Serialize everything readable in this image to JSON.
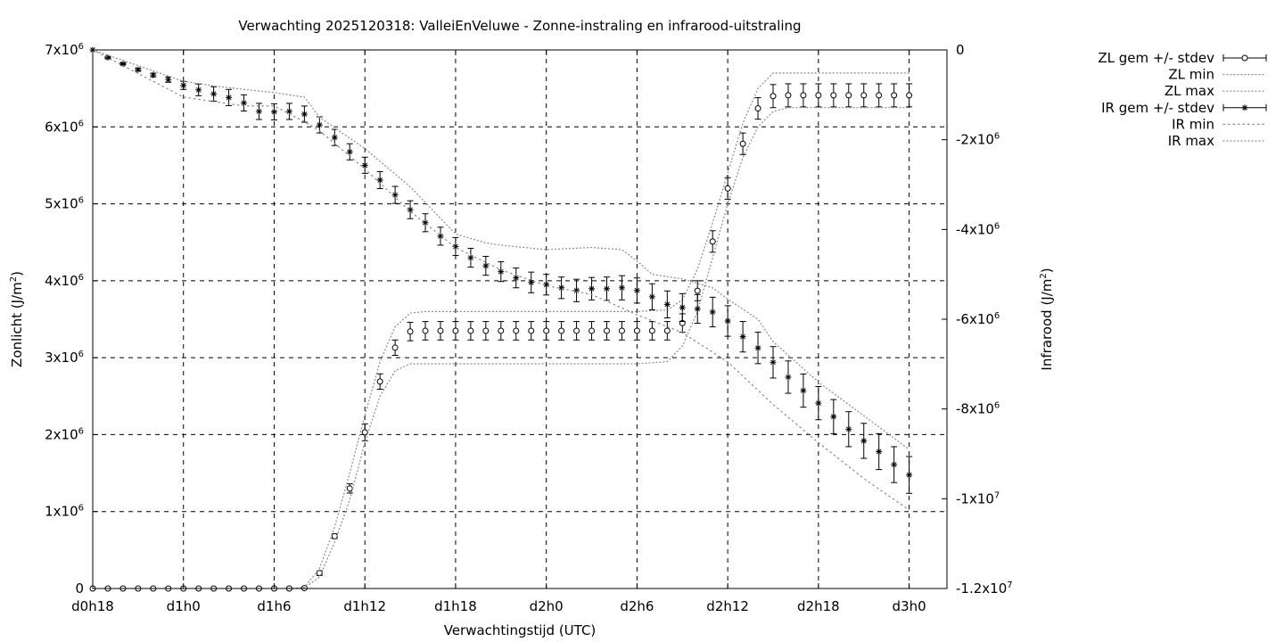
{
  "chart_data": {
    "type": "line",
    "title": "Verwachting 2025120318: ValleiEnVeluwe - Zonne-instraling en infrarood-uitstraling",
    "xlabel": "Verwachtingstijd (UTC)",
    "ylabel_base": "Zonlicht (J/m",
    "ylabel_sup": "2",
    "ylabel_close": ")",
    "y2label_base": "Infrarood (J/m",
    "y2label_sup": "2",
    "y2label_close": ")",
    "x_unit": "hours since d0h18",
    "xlim": [
      0,
      56.5
    ],
    "ylim": [
      0,
      7000000
    ],
    "y2lim": [
      -12000000,
      0
    ],
    "grid": true,
    "legend_position": "outside-top-right",
    "x_ticks": [
      {
        "x": 0,
        "label": "d0h18"
      },
      {
        "x": 6,
        "label": "d1h0"
      },
      {
        "x": 12,
        "label": "d1h6"
      },
      {
        "x": 18,
        "label": "d1h12"
      },
      {
        "x": 24,
        "label": "d1h18"
      },
      {
        "x": 30,
        "label": "d2h0"
      },
      {
        "x": 36,
        "label": "d2h6"
      },
      {
        "x": 42,
        "label": "d2h12"
      },
      {
        "x": 48,
        "label": "d2h18"
      },
      {
        "x": 54,
        "label": "d3h0"
      }
    ],
    "y_ticks": [
      {
        "v": 0,
        "base": "0",
        "exp": ""
      },
      {
        "v": 1000000,
        "base": "1x10",
        "exp": "6"
      },
      {
        "v": 2000000,
        "base": "2x10",
        "exp": "6"
      },
      {
        "v": 3000000,
        "base": "3x10",
        "exp": "6"
      },
      {
        "v": 4000000,
        "base": "4x10",
        "exp": "6"
      },
      {
        "v": 5000000,
        "base": "5x10",
        "exp": "6"
      },
      {
        "v": 6000000,
        "base": "6x10",
        "exp": "6"
      },
      {
        "v": 7000000,
        "base": "7x10",
        "exp": "6"
      }
    ],
    "y2_ticks": [
      {
        "v": 0,
        "base": "0",
        "exp": ""
      },
      {
        "v": -2000000,
        "base": "-2x10",
        "exp": "6"
      },
      {
        "v": -4000000,
        "base": "-4x10",
        "exp": "6"
      },
      {
        "v": -6000000,
        "base": "-6x10",
        "exp": "6"
      },
      {
        "v": -8000000,
        "base": "-8x10",
        "exp": "6"
      },
      {
        "v": -10000000,
        "base": "-1x10",
        "exp": "7"
      },
      {
        "v": -12000000,
        "base": "-1.2x10",
        "exp": "7"
      }
    ],
    "series": [
      {
        "name": "ZL gem +/- stdev",
        "axis": "y1",
        "marker": "circle",
        "x": [
          0,
          1,
          2,
          3,
          4,
          5,
          6,
          7,
          8,
          9,
          10,
          11,
          12,
          13,
          14,
          15,
          16,
          17,
          18,
          19,
          20,
          21,
          22,
          23,
          24,
          25,
          26,
          27,
          28,
          29,
          30,
          31,
          32,
          33,
          34,
          35,
          36,
          37,
          38,
          39,
          40,
          41,
          42,
          43,
          44,
          45,
          46,
          47,
          48,
          49,
          50,
          51,
          52,
          53,
          54
        ],
        "y": [
          0,
          0,
          0,
          0,
          0,
          0,
          0,
          0,
          0,
          0,
          0,
          0,
          0,
          0,
          5000,
          200000,
          680000,
          1300000,
          2030000,
          2690000,
          3130000,
          3340000,
          3350000,
          3350000,
          3350000,
          3350000,
          3350000,
          3350000,
          3350000,
          3350000,
          3350000,
          3350000,
          3350000,
          3350000,
          3350000,
          3350000,
          3350000,
          3350000,
          3350000,
          3450000,
          3870000,
          4510000,
          5200000,
          5780000,
          6240000,
          6400000,
          6410000,
          6410000,
          6410000,
          6410000,
          6410000,
          6410000,
          6410000,
          6410000,
          6410000
        ],
        "err": [
          0,
          0,
          0,
          0,
          0,
          0,
          0,
          0,
          0,
          0,
          0,
          0,
          0,
          0,
          0,
          30000,
          30000,
          60000,
          110000,
          100000,
          100000,
          120000,
          120000,
          120000,
          120000,
          120000,
          120000,
          120000,
          120000,
          120000,
          120000,
          120000,
          120000,
          120000,
          120000,
          120000,
          120000,
          120000,
          120000,
          120000,
          130000,
          140000,
          140000,
          140000,
          140000,
          150000,
          150000,
          150000,
          150000,
          150000,
          150000,
          150000,
          150000,
          150000,
          150000
        ]
      },
      {
        "name": "ZL min",
        "axis": "y1",
        "style": "dotted",
        "x": [
          13,
          14,
          15,
          16,
          17,
          18,
          19,
          20,
          21,
          22,
          24,
          28,
          32,
          36,
          38,
          39,
          40,
          41,
          42,
          43,
          44,
          45,
          46,
          48,
          50,
          52,
          54
        ],
        "y": [
          0,
          5000,
          150000,
          600000,
          1150000,
          1900000,
          2500000,
          2830000,
          2920000,
          2920000,
          2920000,
          2920000,
          2920000,
          2920000,
          2950000,
          3150000,
          3600000,
          4300000,
          5000000,
          5600000,
          6000000,
          6200000,
          6250000,
          6250000,
          6250000,
          6250000,
          6250000
        ]
      },
      {
        "name": "ZL max",
        "axis": "y1",
        "style": "dotted",
        "x": [
          13,
          14,
          15,
          16,
          17,
          18,
          19,
          20,
          21,
          22,
          24,
          28,
          32,
          36,
          38,
          39,
          40,
          41,
          42,
          43,
          44,
          45,
          46,
          48,
          50,
          52,
          54
        ],
        "y": [
          0,
          15000,
          260000,
          800000,
          1500000,
          2250000,
          2950000,
          3400000,
          3580000,
          3600000,
          3600000,
          3600000,
          3600000,
          3600000,
          3620000,
          3750000,
          4150000,
          4750000,
          5400000,
          6050000,
          6500000,
          6700000,
          6700000,
          6700000,
          6700000,
          6700000,
          6700000
        ]
      },
      {
        "name": "IR gem +/- stdev",
        "axis": "y2",
        "marker": "star",
        "x": [
          0,
          1,
          2,
          3,
          4,
          5,
          6,
          7,
          8,
          9,
          10,
          11,
          12,
          13,
          14,
          15,
          16,
          17,
          18,
          19,
          20,
          21,
          22,
          23,
          24,
          25,
          26,
          27,
          28,
          29,
          30,
          31,
          32,
          33,
          34,
          35,
          36,
          37,
          38,
          39,
          40,
          41,
          42,
          43,
          44,
          45,
          46,
          47,
          48,
          49,
          50,
          51,
          52,
          53,
          54
        ],
        "y": [
          0,
          -170000,
          -310000,
          -440000,
          -560000,
          -660000,
          -790000,
          -890000,
          -980000,
          -1060000,
          -1180000,
          -1370000,
          -1380000,
          -1370000,
          -1430000,
          -1670000,
          -1950000,
          -2270000,
          -2570000,
          -2900000,
          -3230000,
          -3560000,
          -3850000,
          -4150000,
          -4380000,
          -4630000,
          -4810000,
          -4940000,
          -5080000,
          -5180000,
          -5230000,
          -5300000,
          -5360000,
          -5320000,
          -5320000,
          -5300000,
          -5360000,
          -5500000,
          -5670000,
          -5740000,
          -5770000,
          -5840000,
          -6040000,
          -6390000,
          -6640000,
          -6960000,
          -7290000,
          -7590000,
          -7870000,
          -8170000,
          -8450000,
          -8710000,
          -8950000,
          -9240000,
          -9470000
        ],
        "err": [
          0,
          20000,
          20000,
          30000,
          40000,
          60000,
          90000,
          130000,
          160000,
          180000,
          180000,
          180000,
          180000,
          180000,
          180000,
          180000,
          180000,
          180000,
          180000,
          190000,
          190000,
          200000,
          200000,
          200000,
          200000,
          210000,
          210000,
          220000,
          220000,
          230000,
          230000,
          240000,
          250000,
          250000,
          260000,
          270000,
          280000,
          290000,
          300000,
          310000,
          320000,
          330000,
          340000,
          340000,
          350000,
          350000,
          360000,
          370000,
          370000,
          380000,
          390000,
          390000,
          400000,
          400000,
          410000
        ]
      },
      {
        "name": "IR min",
        "axis": "y2",
        "style": "dotted",
        "x": [
          0,
          6,
          8,
          10,
          12,
          14,
          15,
          18,
          21,
          24,
          27,
          30,
          33,
          36,
          39,
          42,
          45,
          48,
          51,
          54
        ],
        "y": [
          0,
          -1050000,
          -1150000,
          -1250000,
          -1250000,
          -1600000,
          -1800000,
          -2650000,
          -3600000,
          -4400000,
          -4900000,
          -5250000,
          -5450000,
          -5900000,
          -6300000,
          -6950000,
          -7900000,
          -8750000,
          -9550000,
          -10250000
        ]
      },
      {
        "name": "IR max",
        "axis": "y2",
        "style": "dotted",
        "x": [
          0,
          6,
          8,
          10,
          12,
          14,
          15,
          18,
          21,
          24,
          26,
          27,
          30,
          33,
          35,
          36,
          37,
          39,
          41,
          42,
          44,
          45,
          48,
          51,
          54
        ],
        "y": [
          0,
          -700000,
          -800000,
          -880000,
          -950000,
          -1050000,
          -1500000,
          -2200000,
          -3050000,
          -4100000,
          -4300000,
          -4350000,
          -4450000,
          -4400000,
          -4450000,
          -4700000,
          -5000000,
          -5100000,
          -5300000,
          -5550000,
          -6000000,
          -6500000,
          -7400000,
          -8150000,
          -8900000
        ]
      }
    ]
  }
}
